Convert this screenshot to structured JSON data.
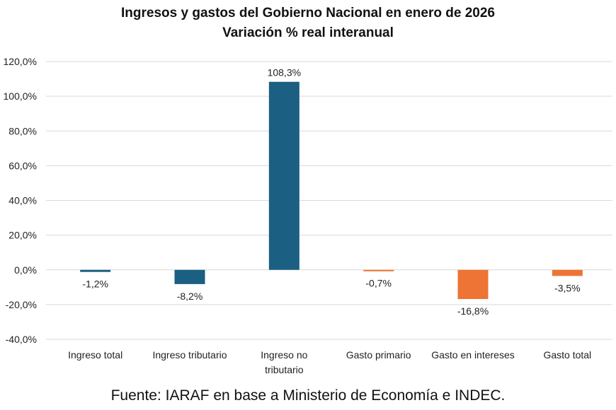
{
  "chart_data": {
    "type": "bar",
    "title": "Ingresos y gastos del Gobierno Nacional en enero de 2026",
    "subtitle": "Variación % real interanual",
    "categories": [
      "Ingreso total",
      "Ingreso tributario",
      "Ingreso no tributario",
      "Gasto primario",
      "Gasto en intereses",
      "Gasto total"
    ],
    "category_lines": [
      [
        "Ingreso total"
      ],
      [
        "Ingreso tributario"
      ],
      [
        "Ingreso no",
        "tributario"
      ],
      [
        "Gasto primario"
      ],
      [
        "Gasto en intereses"
      ],
      [
        "Gasto total"
      ]
    ],
    "values": [
      -1.2,
      -8.2,
      108.3,
      -0.7,
      -16.8,
      -3.5
    ],
    "data_labels": [
      "-1,2%",
      "-8,2%",
      "108,3%",
      "-0,7%",
      "-16,8%",
      "-3,5%"
    ],
    "bar_colors": [
      "#1b5f82",
      "#1b5f82",
      "#1b5f82",
      "#ed7434",
      "#ed7434",
      "#ed7434"
    ],
    "ylim": [
      -40,
      120
    ],
    "yticks": [
      -40,
      -20,
      0,
      20,
      40,
      60,
      80,
      100,
      120
    ],
    "ytick_labels": [
      "-40,0%",
      "-20,0%",
      "0,0%",
      "20,0%",
      "40,0%",
      "60,0%",
      "80,0%",
      "100,0%",
      "120,0%"
    ],
    "grid": true,
    "xlabel": "",
    "ylabel": ""
  },
  "footer": "Fuente: IARAF en base a Ministerio de Economía e INDEC."
}
